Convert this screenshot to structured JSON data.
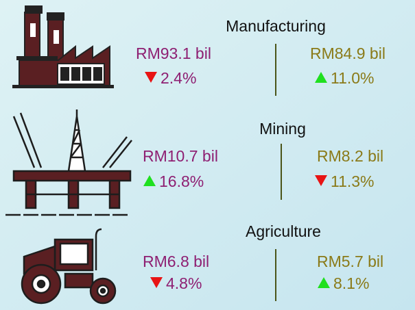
{
  "sectors": [
    {
      "name": "Manufacturing",
      "left": {
        "value": "RM93.1 bil",
        "change": "2.4%",
        "trend": "down"
      },
      "right": {
        "value": "RM84.9 bil",
        "change": "11.0%",
        "trend": "up"
      }
    },
    {
      "name": "Mining",
      "left": {
        "value": "RM10.7 bil",
        "change": "16.8%",
        "trend": "up"
      },
      "right": {
        "value": "RM8.2 bil",
        "change": "11.3%",
        "trend": "down"
      }
    },
    {
      "name": "Agriculture",
      "left": {
        "value": "RM6.8 bil",
        "change": "4.8%",
        "trend": "down"
      },
      "right": {
        "value": "RM5.7 bil",
        "change": "8.1%",
        "trend": "up"
      }
    }
  ],
  "colors": {
    "left": "#8e1f72",
    "right": "#8a7a18",
    "up": "#1fe01f",
    "down": "#e81414",
    "divider": "#4a5418"
  }
}
